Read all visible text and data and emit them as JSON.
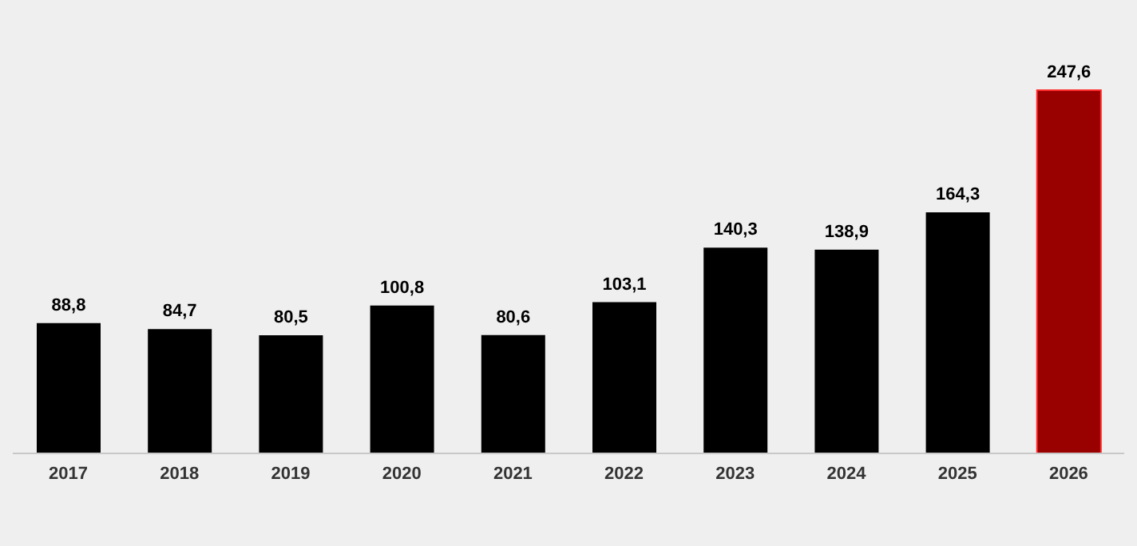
{
  "chart_data": {
    "type": "bar",
    "categories": [
      "2017",
      "2018",
      "2019",
      "2020",
      "2021",
      "2022",
      "2023",
      "2024",
      "2025",
      "2026"
    ],
    "values": [
      88.8,
      84.7,
      80.5,
      100.8,
      80.6,
      103.1,
      140.3,
      138.9,
      164.3,
      247.6
    ],
    "value_labels": [
      "88,8",
      "84,7",
      "80,5",
      "100,8",
      "80,6",
      "103,1",
      "140,3",
      "138,9",
      "164,3",
      "247,6"
    ],
    "colors": [
      "#000000",
      "#000000",
      "#000000",
      "#000000",
      "#000000",
      "#000000",
      "#000000",
      "#000000",
      "#000000",
      "#990000"
    ],
    "grid": false
  }
}
